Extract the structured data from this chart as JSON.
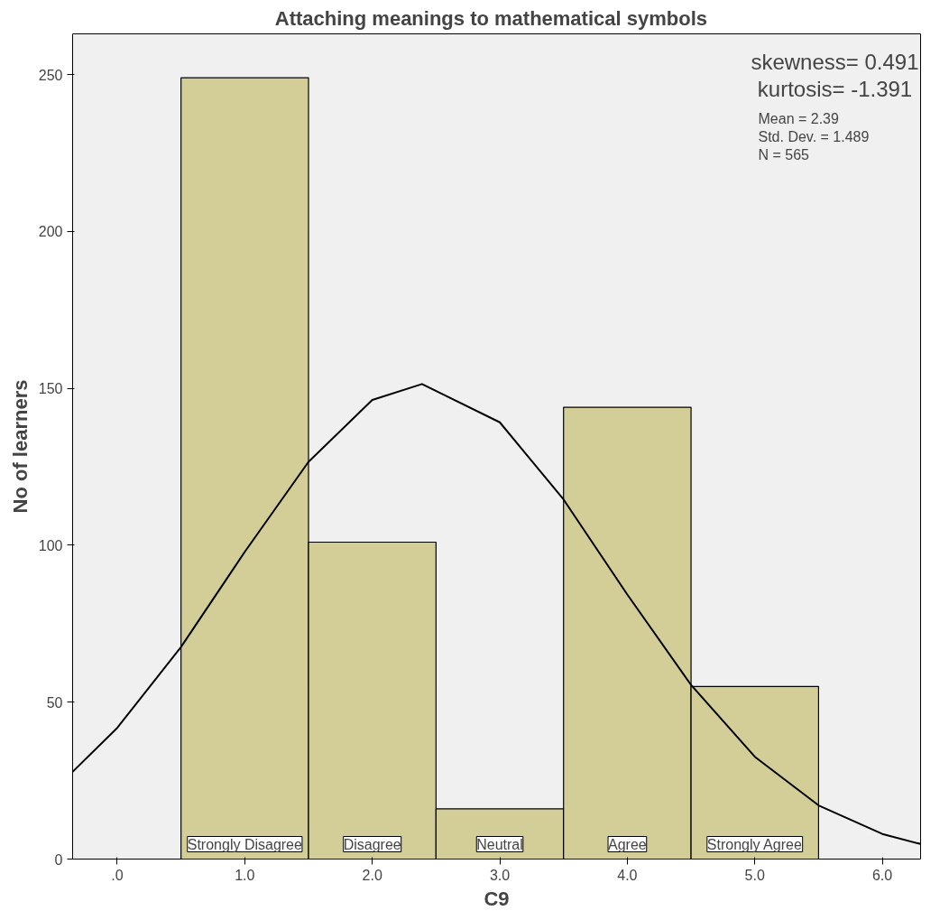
{
  "chart_data": {
    "type": "histogram",
    "title": "Attaching  meanings  to mathematical symbols",
    "xlabel": "C9",
    "ylabel": "No of learners",
    "xlim": [
      -0.35,
      6.3
    ],
    "ylim": [
      0,
      263
    ],
    "xticks": [
      {
        "value": 0,
        "label": ".0"
      },
      {
        "value": 1,
        "label": "1.0"
      },
      {
        "value": 2,
        "label": "2.0"
      },
      {
        "value": 3,
        "label": "3.0"
      },
      {
        "value": 4,
        "label": "4.0"
      },
      {
        "value": 5,
        "label": "5.0"
      },
      {
        "value": 6,
        "label": "6.0"
      }
    ],
    "yticks": [
      0,
      50,
      100,
      150,
      200,
      250
    ],
    "grid": false,
    "series": [
      {
        "color": "#d3ce97",
        "bins": [
          0.5,
          1.5,
          2.5,
          3.5,
          4.5,
          5.5
        ],
        "values": [
          249,
          101,
          16,
          144,
          55
        ]
      },
      {
        "type": "line",
        "color": "#000000",
        "x": [
          -0.35,
          0,
          0.5,
          1,
          1.5,
          2,
          2.39,
          3,
          3.5,
          4,
          4.5,
          5,
          5.5,
          6,
          6.3
        ],
        "values": [
          27.8,
          41.8,
          67.6,
          97.9,
          126.6,
          146.3,
          151.4,
          139.2,
          114.6,
          84.3,
          55.5,
          32.6,
          17.1,
          8.0,
          4.8
        ]
      }
    ],
    "annotations": [
      "skewness= 0.491",
      "kurtosis= -1.391",
      "Mean = 2.39",
      "Std. Dev. = 1.489",
      "N = 565",
      "Strongly Disagree",
      "Disagree",
      "Neutral",
      "Agree",
      "Strongly Agree"
    ]
  }
}
